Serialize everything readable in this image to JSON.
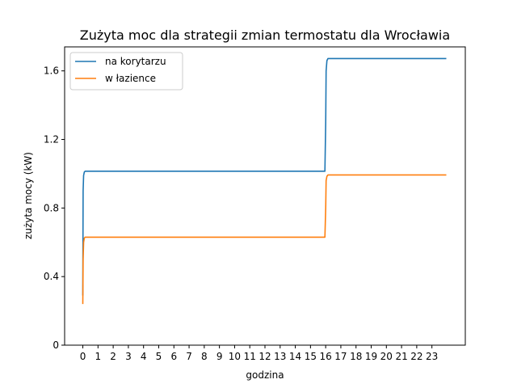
{
  "chart_data": {
    "type": "line",
    "title": "Zużyta moc dla strategii zmian termostatu dla Wrocławia",
    "xlabel": "godzina",
    "ylabel": "zużyta mocy (kW)",
    "xlim": [
      -1.2,
      25.2
    ],
    "ylim": [
      0,
      1.74
    ],
    "xticks": [
      0,
      1,
      2,
      3,
      4,
      5,
      6,
      7,
      8,
      9,
      10,
      11,
      12,
      13,
      14,
      15,
      16,
      17,
      18,
      19,
      20,
      21,
      22,
      23
    ],
    "xtick_labels": [
      "0",
      "1",
      "2",
      "3",
      "4",
      "5",
      "6",
      "7",
      "8",
      "9",
      "10",
      "11",
      "12",
      "13",
      "14",
      "15",
      "16",
      "17",
      "18",
      "19",
      "20",
      "21",
      "22",
      "23"
    ],
    "yticks": [
      0,
      0.4,
      0.8,
      1.2,
      1.6
    ],
    "ytick_labels": [
      "0",
      "0.4",
      "0.8",
      "1.2",
      "1.6"
    ],
    "grid": false,
    "legend_position": "top-left",
    "series": [
      {
        "name": "na korytarzu",
        "color": "#1f77b4",
        "x": [
          0.0,
          0.02,
          0.05,
          0.1,
          0.15,
          15.95,
          16.0,
          16.03,
          16.08,
          16.15,
          23.95
        ],
        "y": [
          0.29,
          0.9,
          0.99,
          1.01,
          1.015,
          1.015,
          1.3,
          1.6,
          1.66,
          1.672,
          1.672
        ]
      },
      {
        "name": "w łazience",
        "color": "#ff7f0e",
        "x": [
          0.0,
          0.02,
          0.05,
          0.1,
          0.15,
          15.95,
          16.0,
          16.03,
          16.08,
          16.15,
          23.95
        ],
        "y": [
          0.24,
          0.5,
          0.6,
          0.625,
          0.63,
          0.63,
          0.8,
          0.96,
          0.985,
          0.993,
          0.993
        ]
      }
    ]
  }
}
